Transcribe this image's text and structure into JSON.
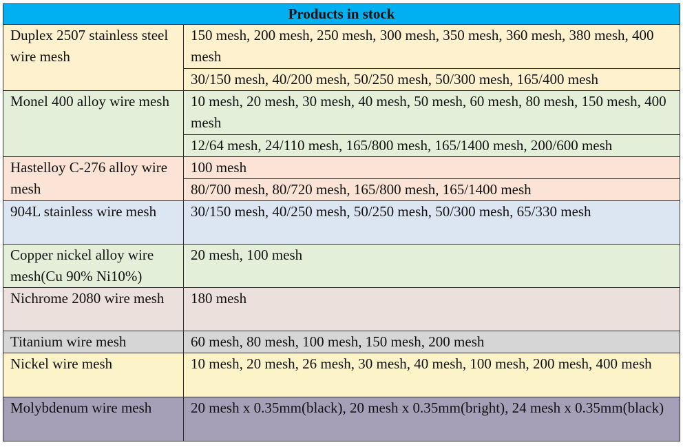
{
  "title": "Products in stock",
  "colors": {
    "header": "#00b0f0",
    "duplex": "#fdf2cd",
    "monel": "#e4efd9",
    "hastelloy": "#fbe4d6",
    "alloy904": "#dce6f3",
    "copper_nickel": "#e4efd9",
    "nichrome": "#ece0dc",
    "titanium": "#d6d6d6",
    "nickel": "#fcf3c9",
    "molybdenum": "#a69fb8"
  },
  "rows": {
    "duplex": {
      "name": "Duplex 2507 stainless steel wire mesh",
      "spec1": "150 mesh, 200 mesh, 250 mesh, 300 mesh, 350 mesh, 360 mesh, 380 mesh, 400 mesh",
      "spec2": "30/150 mesh, 40/200 mesh, 50/250 mesh, 50/300 mesh, 165/400 mesh"
    },
    "monel": {
      "name": "Monel 400 alloy wire mesh",
      "spec1": "10 mesh, 20 mesh, 30 mesh, 40 mesh, 50 mesh, 60 mesh, 80 mesh, 150 mesh, 400 mesh",
      "spec2": "12/64 mesh, 24/110 mesh, 165/800 mesh, 165/1400 mesh, 200/600 mesh"
    },
    "hastelloy": {
      "name": "Hastelloy C-276 alloy wire mesh",
      "spec1": "100 mesh",
      "spec2": "80/700 mesh, 80/720 mesh, 165/800 mesh, 165/1400 mesh"
    },
    "alloy904": {
      "name": "904L stainless wire mesh",
      "spec1": "30/150 mesh, 40/250 mesh, 50/250 mesh, 50/300 mesh, 65/330 mesh"
    },
    "copper_nickel": {
      "name": "Copper nickel alloy wire mesh(Cu 90% Ni10%)",
      "spec1": "20 mesh, 100 mesh"
    },
    "nichrome": {
      "name": "Nichrome 2080 wire mesh",
      "spec1": "180 mesh"
    },
    "titanium": {
      "name": "Titanium wire mesh",
      "spec1": "60 mesh, 80 mesh, 100 mesh, 150 mesh, 200 mesh"
    },
    "nickel": {
      "name": "Nickel wire mesh",
      "spec1": "10 mesh, 20 mesh, 26 mesh, 30 mesh, 40 mesh, 100 mesh, 200 mesh, 400 mesh"
    },
    "molybdenum": {
      "name": "Molybdenum wire mesh",
      "spec1": "20 mesh x 0.35mm(black), 20 mesh x 0.35mm(bright), 24 mesh x 0.35mm(black)"
    }
  }
}
